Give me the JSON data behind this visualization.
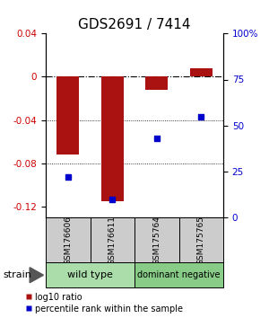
{
  "title": "GDS2691 / 7414",
  "samples": [
    "GSM176606",
    "GSM176611",
    "GSM175764",
    "GSM175765"
  ],
  "log10_ratio": [
    -0.072,
    -0.115,
    -0.012,
    0.008
  ],
  "percentile_rank": [
    22,
    10,
    43,
    55
  ],
  "ylim_left": [
    -0.13,
    0.04
  ],
  "ylim_right": [
    0,
    100
  ],
  "yticks_left": [
    0.04,
    0,
    -0.04,
    -0.08,
    -0.12
  ],
  "yticks_right": [
    100,
    75,
    50,
    25,
    0
  ],
  "bar_color": "#aa1111",
  "dot_color": "#0000cc",
  "dotted_lines": [
    -0.04,
    -0.08
  ],
  "left_axis_color": "#cc0000",
  "right_axis_color": "#0000cc",
  "title_fontsize": 11,
  "tick_fontsize": 7.5,
  "sample_label_fontsize": 6.5,
  "group_fontsize": 8,
  "legend_fontsize": 7,
  "legend_red_label": "log10 ratio",
  "legend_blue_label": "percentile rank within the sample",
  "wt_color": "#aaddaa",
  "dn_color": "#88cc88",
  "sample_box_color": "#cccccc",
  "bar_width": 0.5
}
